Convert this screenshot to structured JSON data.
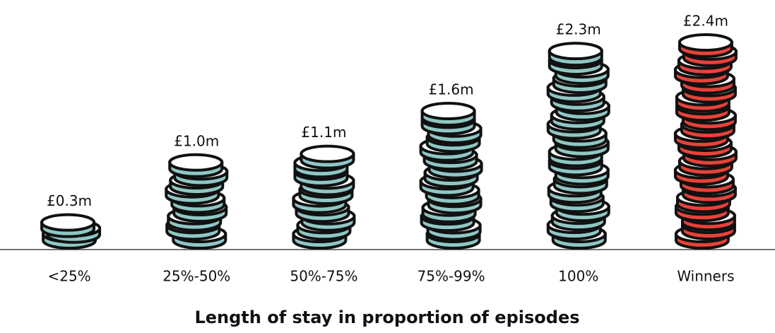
{
  "chart_data": {
    "type": "coin-stack",
    "x_label": "Length of stay in proportion of episodes",
    "categories": [
      "<25%",
      "25%-50%",
      "50%-75%",
      "75%-99%",
      "100%",
      "Winners"
    ],
    "values": [
      0.3,
      1.0,
      1.1,
      1.6,
      2.3,
      2.4
    ],
    "value_labels": [
      "£0.3m",
      "£1.0m",
      "£1.1m",
      "£1.6m",
      "£2.3m",
      "£2.4m"
    ],
    "colors": [
      "#8fc7c4",
      "#8fc7c4",
      "#8fc7c4",
      "#8fc7c4",
      "#8fc7c4",
      "#e8423a"
    ]
  }
}
